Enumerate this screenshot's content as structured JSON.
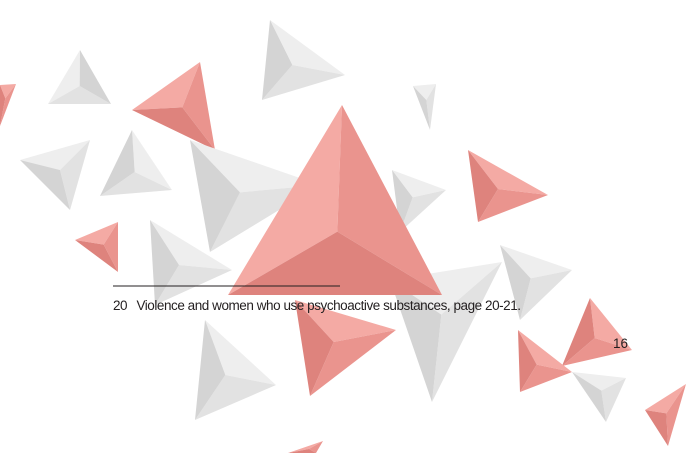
{
  "footnote": {
    "number": "20",
    "text": "Violence and women who use psychoactive substances, page 20-21."
  },
  "page_number": "16"
}
